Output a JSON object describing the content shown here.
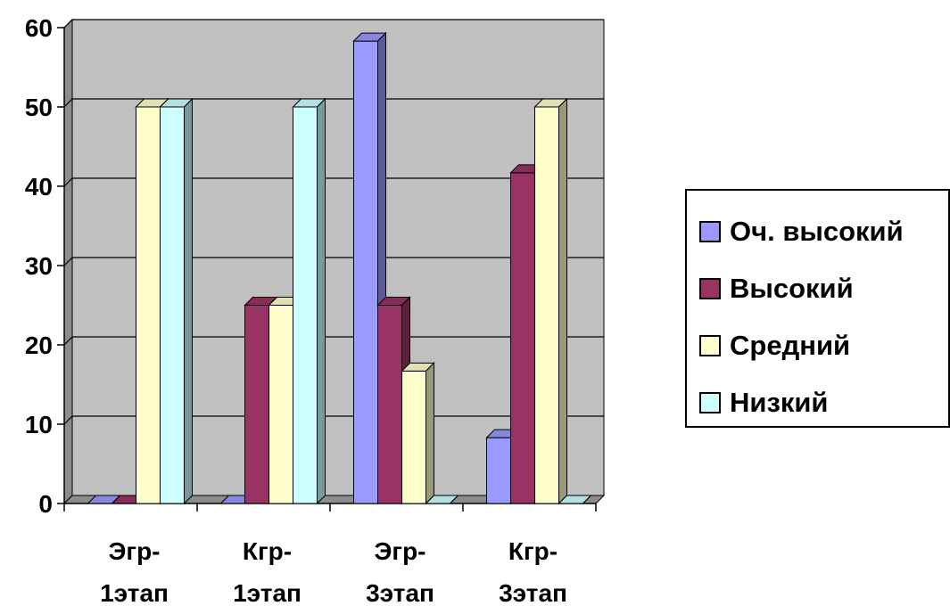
{
  "chart_data": {
    "type": "bar",
    "categories": [
      [
        "Эгр-",
        "1этап"
      ],
      [
        "Кгр-",
        "1этап"
      ],
      [
        "Эгр-",
        "3этап"
      ],
      [
        "Кгр-",
        "3этап"
      ]
    ],
    "series": [
      {
        "name": "Оч. высокий",
        "values": [
          0,
          0,
          58.3,
          8.3
        ],
        "color": "#9999ff"
      },
      {
        "name": "Высокий",
        "values": [
          0,
          25,
          25,
          41.7
        ],
        "color": "#993366"
      },
      {
        "name": "Средний",
        "values": [
          50,
          25,
          16.7,
          50
        ],
        "color": "#ffffcc"
      },
      {
        "name": "Низкий",
        "values": [
          50,
          50,
          0,
          0
        ],
        "color": "#ccffff"
      }
    ],
    "ylim": [
      0,
      60
    ],
    "yticks": [
      0,
      10,
      20,
      30,
      40,
      50,
      60
    ],
    "grid": true,
    "legend_position": "right",
    "plot_background": "#c0c0c0",
    "title": "",
    "xlabel": "",
    "ylabel": ""
  },
  "legend": {
    "items": [
      {
        "label": "Оч. высокий",
        "color": "#9999ff"
      },
      {
        "label": "Высокий",
        "color": "#993366"
      },
      {
        "label": "Средний",
        "color": "#ffffcc"
      },
      {
        "label": "Низкий",
        "color": "#ccffff"
      }
    ]
  }
}
